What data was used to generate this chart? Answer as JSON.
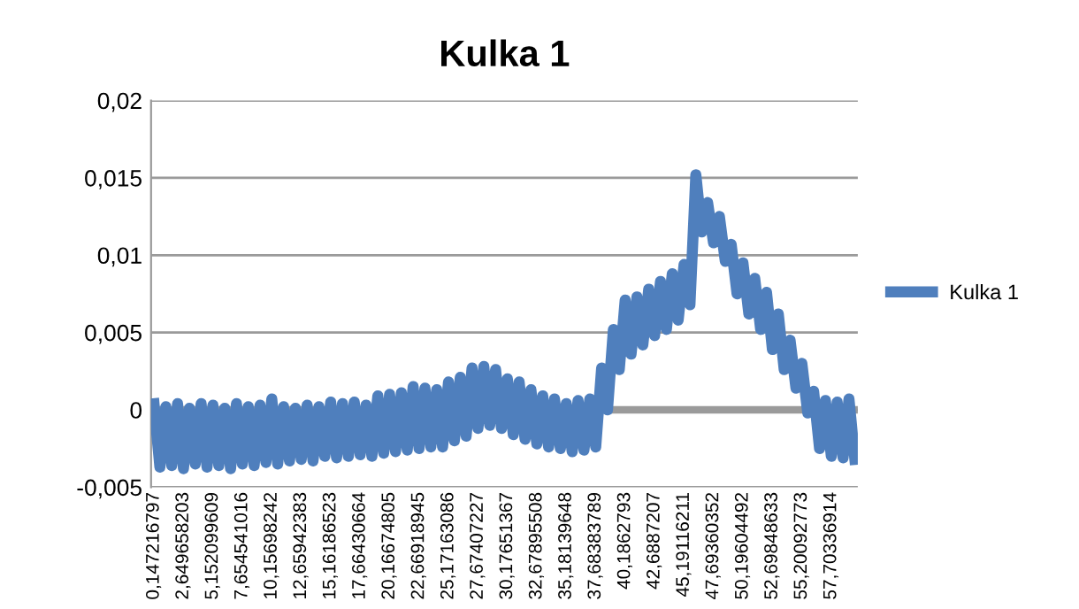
{
  "chart_data": {
    "type": "line",
    "title": "Kulka 1",
    "categories": [
      "0,147216797",
      null,
      null,
      null,
      null,
      "2,649658203",
      null,
      null,
      null,
      null,
      "5,152099609",
      null,
      null,
      null,
      null,
      "7,654541016",
      null,
      null,
      null,
      null,
      "10,15698242",
      null,
      null,
      null,
      null,
      "12,65942383",
      null,
      null,
      null,
      null,
      "15,16186523",
      null,
      null,
      null,
      null,
      "17,66430664",
      null,
      null,
      null,
      null,
      "20,16674805",
      null,
      null,
      null,
      null,
      "22,66918945",
      null,
      null,
      null,
      null,
      "25,17163086",
      null,
      null,
      null,
      null,
      "27,67407227",
      null,
      null,
      null,
      null,
      "30,17651367",
      null,
      null,
      null,
      null,
      "32,67895508",
      null,
      null,
      null,
      null,
      "35,18139648",
      null,
      null,
      null,
      null,
      "37,68383789",
      null,
      null,
      null,
      null,
      "40,1862793",
      null,
      null,
      null,
      null,
      "42,6887207",
      null,
      null,
      null,
      null,
      "45,19116211",
      null,
      null,
      null,
      null,
      "47,69360352",
      null,
      null,
      null,
      null,
      "50,19604492",
      null,
      null,
      null,
      null,
      "52,69848633",
      null,
      null,
      null,
      null,
      "55,20092773",
      null,
      null,
      null,
      null,
      "57,70336914",
      null,
      null,
      null,
      null
    ],
    "series": [
      {
        "name": "Kulka 1",
        "color": "#4f7fbd",
        "values": [
          0.0004,
          -0.0037,
          0.0002,
          -0.0036,
          0.0004,
          -0.0038,
          0.0001,
          -0.0035,
          0.0004,
          -0.0037,
          0.0003,
          -0.0036,
          0.0001,
          -0.0038,
          0.0004,
          -0.0035,
          0.0002,
          -0.0036,
          0.0003,
          -0.0034,
          0.0007,
          -0.0035,
          0.0002,
          -0.0033,
          0.0001,
          -0.0032,
          0.0003,
          -0.0033,
          0.0002,
          -0.003,
          0.0005,
          -0.0031,
          0.0004,
          -0.003,
          0.0005,
          -0.0029,
          0.0003,
          -0.003,
          0.0009,
          -0.0028,
          0.001,
          -0.0027,
          0.0011,
          -0.0026,
          0.0015,
          -0.0025,
          0.0014,
          -0.0024,
          0.0013,
          -0.0024,
          0.0018,
          -0.002,
          0.0021,
          -0.0017,
          0.0027,
          -0.0012,
          0.0028,
          -0.001,
          0.0026,
          -0.0012,
          0.002,
          -0.0016,
          0.0018,
          -0.0019,
          0.0013,
          -0.0022,
          0.0009,
          -0.0024,
          0.0007,
          -0.0025,
          0.0004,
          -0.0027,
          0.0006,
          -0.0026,
          0.0007,
          -0.0024,
          0.0027,
          0.0,
          0.0052,
          0.0026,
          0.0071,
          0.0036,
          0.0073,
          0.0042,
          0.0078,
          0.0048,
          0.0083,
          0.0052,
          0.0088,
          0.0058,
          0.0094,
          0.0068,
          0.0152,
          0.0115,
          0.0134,
          0.0108,
          0.0125,
          0.0096,
          0.0107,
          0.0075,
          0.0095,
          0.0062,
          0.0085,
          0.0052,
          0.0076,
          0.0039,
          0.0062,
          0.0026,
          0.0045,
          0.0014,
          0.003,
          -0.0002,
          0.0012,
          -0.0025,
          0.0006,
          -0.003,
          0.0005,
          -0.0031,
          0.0007,
          -0.0032
        ]
      }
    ],
    "ylim": [
      -0.005,
      0.02
    ],
    "yticks": [
      {
        "value": -0.005,
        "label": "-0,005"
      },
      {
        "value": 0,
        "label": "0"
      },
      {
        "value": 0.005,
        "label": "0,005"
      },
      {
        "value": 0.01,
        "label": "0,01"
      },
      {
        "value": 0.015,
        "label": "0,015"
      },
      {
        "value": 0.02,
        "label": "0,02"
      }
    ],
    "grid": "y",
    "legend": "right",
    "marker": "none",
    "line_style": "solid"
  }
}
